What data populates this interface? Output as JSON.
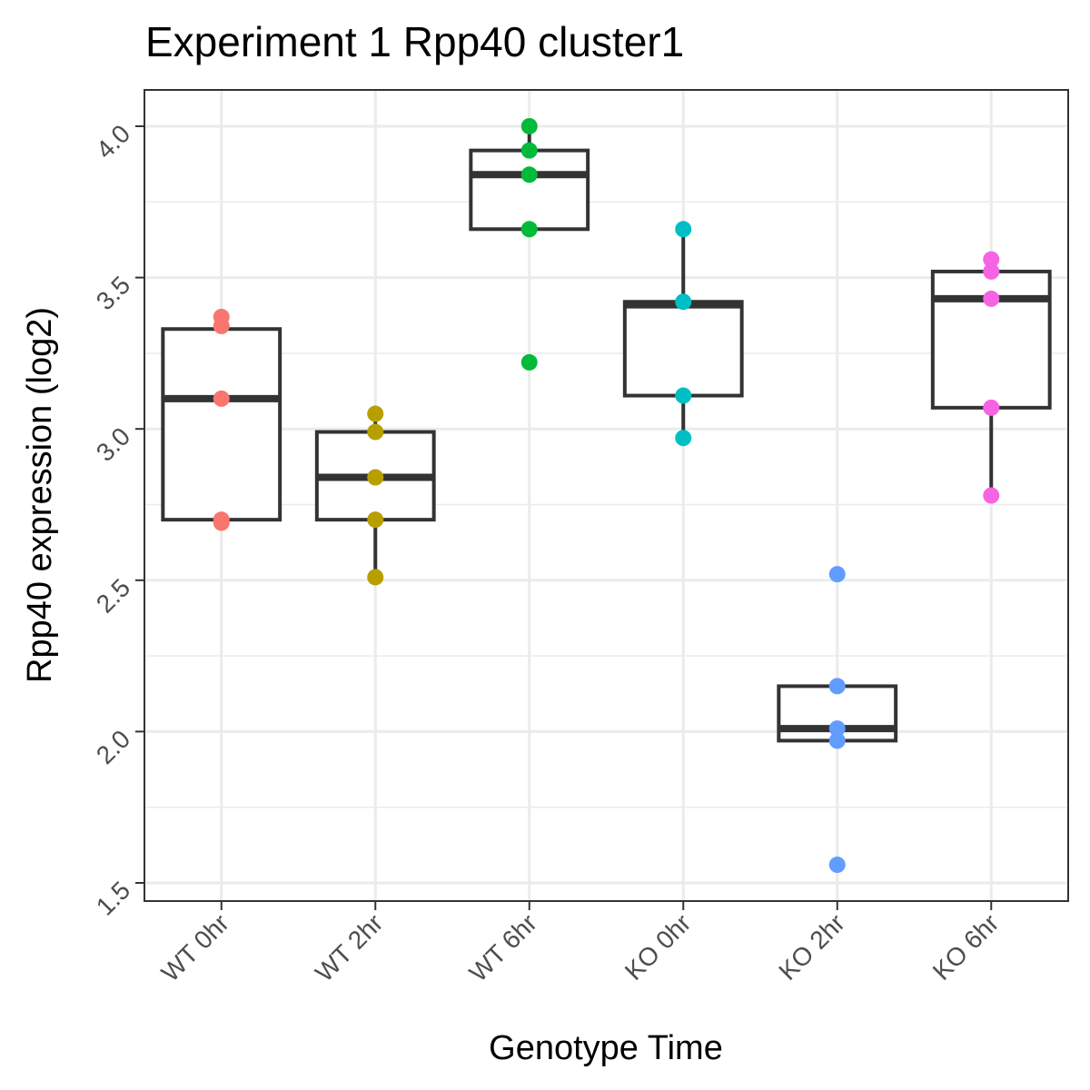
{
  "chart_data": {
    "type": "box",
    "title": "Experiment 1 Rpp40 cluster1",
    "xlabel": "Genotype Time",
    "ylabel": "Rpp40 expression (log2)",
    "categories": [
      "WT 0hr",
      "WT 2hr",
      "WT 6hr",
      "KO 0hr",
      "KO 2hr",
      "KO 6hr"
    ],
    "colors": [
      "#F8766D",
      "#B79F00",
      "#00BA38",
      "#00BFC4",
      "#619CFF",
      "#F564E3"
    ],
    "ylim": [
      1.44,
      4.12
    ],
    "yticks": [
      1.5,
      2.0,
      2.5,
      3.0,
      3.5,
      4.0
    ],
    "ytick_labels": [
      "1.5",
      "2.0",
      "2.5",
      "3.0",
      "3.5",
      "4.0"
    ],
    "grid": true,
    "legend": "none",
    "boxes": [
      {
        "q1": 2.7,
        "median": 3.1,
        "q3": 3.33,
        "whisker_low": 2.69,
        "whisker_high": 3.37
      },
      {
        "q1": 2.7,
        "median": 2.84,
        "q3": 2.99,
        "whisker_low": 2.51,
        "whisker_high": 3.05
      },
      {
        "q1": 3.66,
        "median": 3.84,
        "q3": 3.92,
        "whisker_low": 3.66,
        "whisker_high": 4.0
      },
      {
        "q1": 3.11,
        "median": 3.41,
        "q3": 3.42,
        "whisker_low": 2.97,
        "whisker_high": 3.66
      },
      {
        "q1": 1.97,
        "median": 2.01,
        "q3": 2.15,
        "whisker_low": 1.97,
        "whisker_high": 2.15
      },
      {
        "q1": 3.07,
        "median": 3.43,
        "q3": 3.52,
        "whisker_low": 2.78,
        "whisker_high": 3.56
      }
    ],
    "points": [
      [
        3.37,
        3.34,
        3.1,
        2.7,
        2.69
      ],
      [
        3.05,
        2.99,
        2.84,
        2.7,
        2.51
      ],
      [
        4.0,
        3.92,
        3.84,
        3.66,
        3.22
      ],
      [
        3.66,
        3.42,
        3.11,
        2.97
      ],
      [
        2.52,
        2.15,
        2.01,
        1.97,
        1.56
      ],
      [
        3.56,
        3.52,
        3.43,
        3.07,
        2.78
      ]
    ]
  }
}
